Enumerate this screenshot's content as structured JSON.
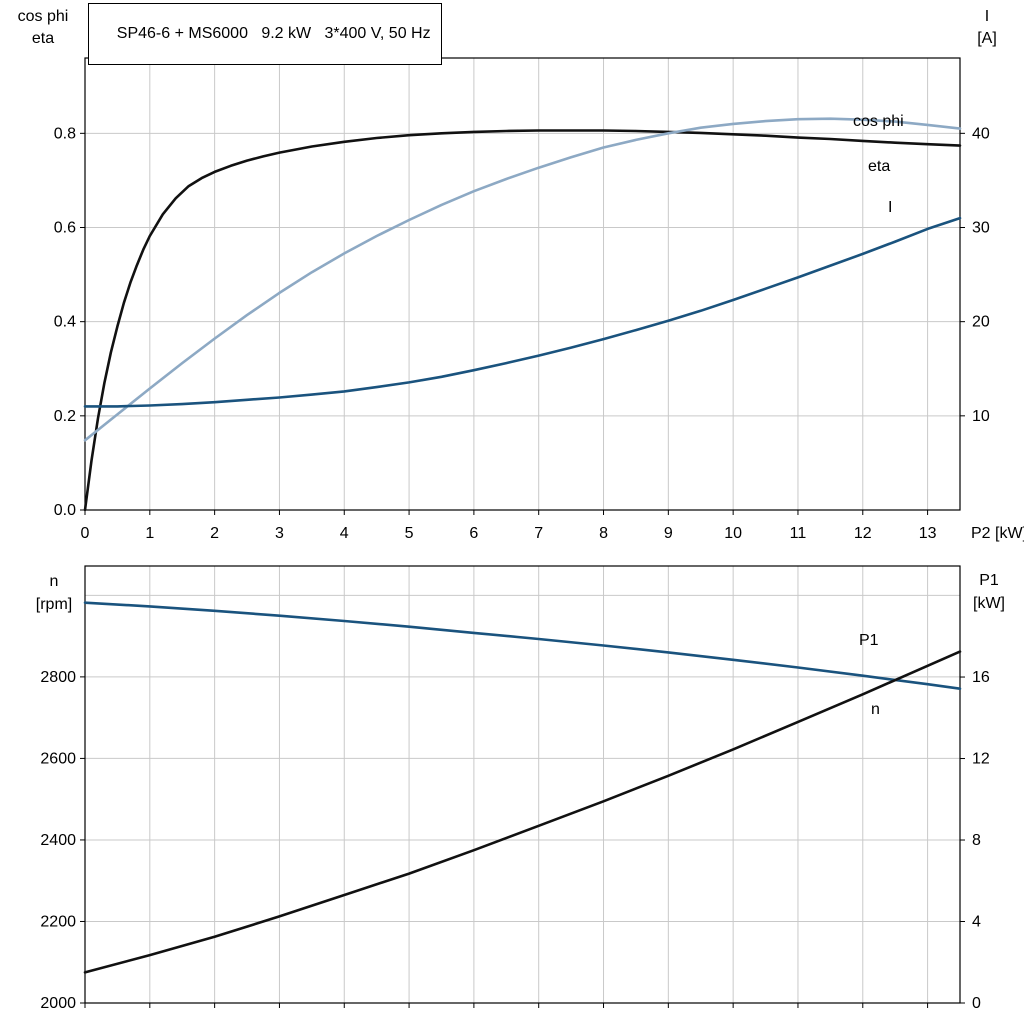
{
  "header": {
    "title": "SP46-6 + MS6000   9.2 kW   3*400 V, 50 Hz"
  },
  "style": {
    "background": "#ffffff",
    "grid_color": "#c9c9c9",
    "frame_color": "#000000",
    "eta_color": "#111111",
    "cosphi_color": "#8da9c4",
    "current_color": "#1a537e"
  },
  "chart_data": [
    {
      "type": "line",
      "title": "SP46-6 + MS6000   9.2 kW   3*400 V, 50 Hz",
      "x": {
        "min": 0,
        "max": 13.5,
        "ticks": [
          0,
          1,
          2,
          3,
          4,
          5,
          6,
          7,
          8,
          9,
          10,
          11,
          12,
          13
        ],
        "labels": [
          "0",
          "1",
          "2",
          "3",
          "4",
          "5",
          "6",
          "7",
          "8",
          "9",
          "10",
          "11",
          "12",
          "13"
        ],
        "axis_label": "P2 [kW]"
      },
      "y_left": {
        "title_lines": [
          "cos phi",
          "eta"
        ],
        "min": 0,
        "max": 0.96,
        "ticks": [
          0,
          0.2,
          0.4,
          0.6,
          0.8
        ],
        "labels": [
          "0.0",
          "0.2",
          "0.4",
          "0.6",
          "0.8"
        ],
        "grid": [
          0.2,
          0.4,
          0.6,
          0.8
        ]
      },
      "y_right": {
        "title_lines": [
          "I",
          "[A]"
        ],
        "min": 0,
        "max": 48,
        "ticks": [
          10,
          20,
          30,
          40
        ],
        "labels": [
          "10",
          "20",
          "30",
          "40"
        ]
      },
      "series": [
        {
          "name": "eta",
          "axis": "left",
          "color": "#111111",
          "points": [
            [
              0,
              0
            ],
            [
              0.1,
              0.105
            ],
            [
              0.2,
              0.195
            ],
            [
              0.3,
              0.27
            ],
            [
              0.4,
              0.335
            ],
            [
              0.5,
              0.39
            ],
            [
              0.6,
              0.44
            ],
            [
              0.7,
              0.483
            ],
            [
              0.8,
              0.52
            ],
            [
              0.9,
              0.553
            ],
            [
              1,
              0.582
            ],
            [
              1.2,
              0.628
            ],
            [
              1.4,
              0.662
            ],
            [
              1.6,
              0.688
            ],
            [
              1.8,
              0.705
            ],
            [
              2,
              0.718
            ],
            [
              2.25,
              0.731
            ],
            [
              2.5,
              0.742
            ],
            [
              2.75,
              0.751
            ],
            [
              3,
              0.759
            ],
            [
              3.5,
              0.772
            ],
            [
              4,
              0.782
            ],
            [
              4.5,
              0.79
            ],
            [
              5,
              0.796
            ],
            [
              5.5,
              0.8
            ],
            [
              6,
              0.803
            ],
            [
              6.5,
              0.805
            ],
            [
              7,
              0.806
            ],
            [
              7.5,
              0.806
            ],
            [
              8,
              0.806
            ],
            [
              8.5,
              0.805
            ],
            [
              9,
              0.803
            ],
            [
              9.5,
              0.801
            ],
            [
              10,
              0.798
            ],
            [
              10.5,
              0.795
            ],
            [
              11,
              0.791
            ],
            [
              11.5,
              0.788
            ],
            [
              12,
              0.784
            ],
            [
              12.5,
              0.78
            ],
            [
              13,
              0.777
            ],
            [
              13.5,
              0.774
            ]
          ]
        },
        {
          "name": "cos phi",
          "axis": "left",
          "color": "#8da9c4",
          "points": [
            [
              0,
              0.148
            ],
            [
              0.5,
              0.203
            ],
            [
              1,
              0.258
            ],
            [
              1.5,
              0.312
            ],
            [
              2,
              0.364
            ],
            [
              2.5,
              0.414
            ],
            [
              3,
              0.461
            ],
            [
              3.5,
              0.505
            ],
            [
              4,
              0.545
            ],
            [
              4.5,
              0.582
            ],
            [
              5,
              0.616
            ],
            [
              5.5,
              0.648
            ],
            [
              6,
              0.677
            ],
            [
              6.5,
              0.703
            ],
            [
              7,
              0.727
            ],
            [
              7.5,
              0.749
            ],
            [
              8,
              0.77
            ],
            [
              8.5,
              0.786
            ],
            [
              9,
              0.8
            ],
            [
              9.5,
              0.812
            ],
            [
              10,
              0.82
            ],
            [
              10.5,
              0.826
            ],
            [
              11,
              0.83
            ],
            [
              11.5,
              0.831
            ],
            [
              12,
              0.829
            ],
            [
              12.5,
              0.825
            ],
            [
              13,
              0.818
            ],
            [
              13.5,
              0.81
            ]
          ]
        },
        {
          "name": "I",
          "axis": "right",
          "color": "#1a537e",
          "points": [
            [
              0,
              11
            ],
            [
              0.5,
              11
            ],
            [
              1,
              11.1
            ],
            [
              1.5,
              11.25
            ],
            [
              2,
              11.45
            ],
            [
              2.5,
              11.7
            ],
            [
              3,
              11.95
            ],
            [
              3.5,
              12.25
            ],
            [
              4,
              12.6
            ],
            [
              4.5,
              13.05
            ],
            [
              5,
              13.55
            ],
            [
              5.5,
              14.15
            ],
            [
              6,
              14.85
            ],
            [
              6.5,
              15.6
            ],
            [
              7,
              16.4
            ],
            [
              7.5,
              17.25
            ],
            [
              8,
              18.15
            ],
            [
              8.5,
              19.1
            ],
            [
              9,
              20.1
            ],
            [
              9.5,
              21.15
            ],
            [
              10,
              22.3
            ],
            [
              10.5,
              23.5
            ],
            [
              11,
              24.7
            ],
            [
              11.5,
              25.95
            ],
            [
              12,
              27.2
            ],
            [
              12.5,
              28.5
            ],
            [
              13,
              29.85
            ],
            [
              13.5,
              31
            ]
          ]
        }
      ]
    },
    {
      "type": "line",
      "title": "",
      "x": {
        "min": 0,
        "max": 13.5,
        "ticks": [
          0,
          1,
          2,
          3,
          4,
          5,
          6,
          7,
          8,
          9,
          10,
          11,
          12,
          13
        ],
        "labels": [],
        "axis_label": ""
      },
      "y_left": {
        "title_lines": [
          "n",
          "[rpm]"
        ],
        "min": 2000,
        "max": 3072,
        "ticks": [
          2000,
          2200,
          2400,
          2600,
          2800
        ],
        "labels": [
          "2000",
          "2200",
          "2400",
          "2600",
          "2800"
        ],
        "grid": [
          2200,
          2400,
          2600,
          2800,
          3000
        ]
      },
      "y_right": {
        "title_lines": [
          "P1",
          "[kW]"
        ],
        "min": 0,
        "max": 21.45,
        "ticks": [
          0,
          4,
          8,
          12,
          16
        ],
        "labels": [
          "0",
          "4",
          "8",
          "12",
          "16"
        ]
      },
      "series": [
        {
          "name": "n",
          "axis": "left",
          "color": "#1a537e",
          "points": [
            [
              0,
              2982
            ],
            [
              1,
              2973
            ],
            [
              2,
              2962
            ],
            [
              3,
              2950
            ],
            [
              4,
              2937
            ],
            [
              5,
              2923
            ],
            [
              6,
              2908
            ],
            [
              7,
              2893
            ],
            [
              8,
              2877
            ],
            [
              9,
              2860
            ],
            [
              10,
              2842
            ],
            [
              11,
              2823
            ],
            [
              12,
              2803
            ],
            [
              13,
              2782
            ],
            [
              13.5,
              2771
            ]
          ]
        },
        {
          "name": "P1",
          "axis": "right",
          "color": "#111111",
          "points": [
            [
              0,
              1.5
            ],
            [
              1,
              2.35
            ],
            [
              2,
              3.25
            ],
            [
              3,
              4.25
            ],
            [
              4,
              5.3
            ],
            [
              5,
              6.35
            ],
            [
              6,
              7.5
            ],
            [
              7,
              8.7
            ],
            [
              8,
              9.9
            ],
            [
              9,
              11.15
            ],
            [
              10,
              12.45
            ],
            [
              11,
              13.8
            ],
            [
              12,
              15.15
            ],
            [
              13,
              16.55
            ],
            [
              13.5,
              17.25
            ]
          ]
        }
      ]
    }
  ]
}
